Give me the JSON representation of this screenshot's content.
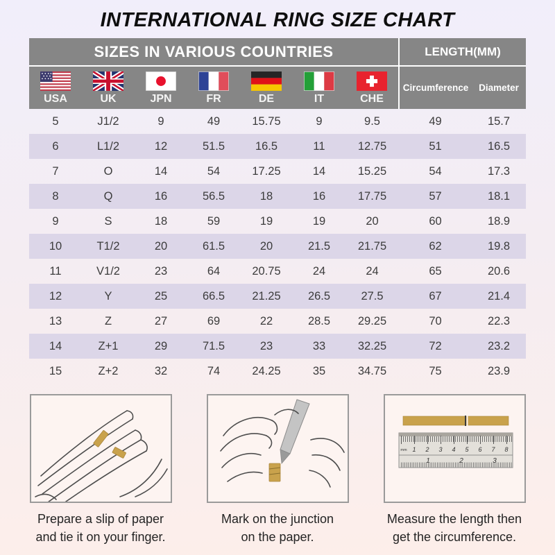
{
  "title": "INTERNATIONAL RING SIZE CHART",
  "table": {
    "group_headers": {
      "left": "SIZES IN VARIOUS COUNTRIES",
      "right": "LENGTH(MM)"
    },
    "countries": [
      {
        "code": "USA",
        "flag": "usa-flag-icon"
      },
      {
        "code": "UK",
        "flag": "uk-flag-icon"
      },
      {
        "code": "JPN",
        "flag": "japan-flag-icon"
      },
      {
        "code": "FR",
        "flag": "france-flag-icon"
      },
      {
        "code": "DE",
        "flag": "germany-flag-icon"
      },
      {
        "code": "IT",
        "flag": "italy-flag-icon"
      },
      {
        "code": "CHE",
        "flag": "switzerland-flag-icon"
      }
    ],
    "length_columns": [
      "Circumference",
      "Diameter"
    ]
  },
  "chart_data": {
    "type": "table",
    "title": "INTERNATIONAL RING SIZE CHART",
    "columns": [
      "USA",
      "UK",
      "JPN",
      "FR",
      "DE",
      "IT",
      "CHE",
      "Circumference",
      "Diameter"
    ],
    "rows": [
      [
        "5",
        "J1/2",
        "9",
        "49",
        "15.75",
        "9",
        "9.5",
        "49",
        "15.7"
      ],
      [
        "6",
        "L1/2",
        "12",
        "51.5",
        "16.5",
        "11",
        "12.75",
        "51",
        "16.5"
      ],
      [
        "7",
        "O",
        "14",
        "54",
        "17.25",
        "14",
        "15.25",
        "54",
        "17.3"
      ],
      [
        "8",
        "Q",
        "16",
        "56.5",
        "18",
        "16",
        "17.75",
        "57",
        "18.1"
      ],
      [
        "9",
        "S",
        "18",
        "59",
        "19",
        "19",
        "20",
        "60",
        "18.9"
      ],
      [
        "10",
        "T1/2",
        "20",
        "61.5",
        "20",
        "21.5",
        "21.75",
        "62",
        "19.8"
      ],
      [
        "11",
        "V1/2",
        "23",
        "64",
        "20.75",
        "24",
        "24",
        "65",
        "20.6"
      ],
      [
        "12",
        "Y",
        "25",
        "66.5",
        "21.25",
        "26.5",
        "27.5",
        "67",
        "21.4"
      ],
      [
        "13",
        "Z",
        "27",
        "69",
        "22",
        "28.5",
        "29.25",
        "70",
        "22.3"
      ],
      [
        "14",
        "Z+1",
        "29",
        "71.5",
        "23",
        "33",
        "32.25",
        "72",
        "23.2"
      ],
      [
        "15",
        "Z+2",
        "32",
        "74",
        "24.25",
        "35",
        "34.75",
        "75",
        "23.9"
      ]
    ]
  },
  "instructions": [
    {
      "line1": "Prepare a slip of paper",
      "line2": "and tie it on your finger."
    },
    {
      "line1": "Mark on the junction",
      "line2": "on the paper."
    },
    {
      "line1": "Measure the length then",
      "line2": "get the circumference."
    }
  ],
  "ruler": {
    "unit_label": "mm",
    "top_numbers": [
      "1",
      "2",
      "3",
      "4",
      "5",
      "6",
      "7",
      "8"
    ],
    "bottom_numbers": [
      "1",
      "2",
      "3"
    ]
  },
  "colors": {
    "header_gray": "#868686",
    "row_stripe": "#dcd6e8",
    "paper_strip_gold": "#c9a24c",
    "background_top": "#f1eefb",
    "background_bottom": "#fdeeea"
  }
}
